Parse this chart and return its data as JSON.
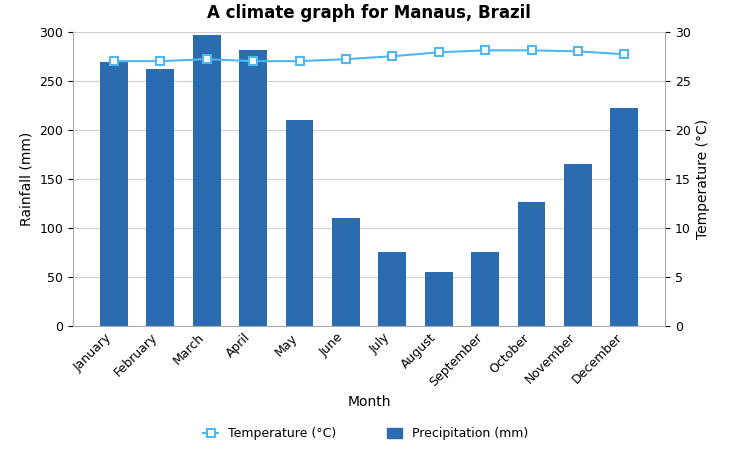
{
  "title": "A climate graph for Manaus, Brazil",
  "months": [
    "January",
    "February",
    "March",
    "April",
    "May",
    "June",
    "July",
    "August",
    "September",
    "October",
    "November",
    "December"
  ],
  "precipitation": [
    269,
    262,
    297,
    281,
    210,
    110,
    76,
    55,
    76,
    126,
    165,
    222
  ],
  "temperature": [
    27.0,
    27.0,
    27.2,
    27.0,
    27.0,
    27.2,
    27.5,
    27.9,
    28.1,
    28.1,
    28.0,
    27.7
  ],
  "bar_color": "#2b6cb0",
  "line_color": "#4db8f0",
  "marker_facecolor": "white",
  "marker_edgecolor": "#4db8f0",
  "ylabel_left": "Rainfall (mm)",
  "ylabel_right": "Temperature (°C)",
  "xlabel": "Month",
  "ylim_left": [
    0,
    300
  ],
  "ylim_right": [
    0,
    30
  ],
  "yticks_left": [
    0,
    50,
    100,
    150,
    200,
    250,
    300
  ],
  "yticks_right": [
    0,
    5,
    10,
    15,
    20,
    25,
    30
  ],
  "legend_temp": "Temperature (°C)",
  "legend_precip": "Precipitation (mm)",
  "background_color": "#ffffff",
  "grid_color": "#d0d0d0"
}
